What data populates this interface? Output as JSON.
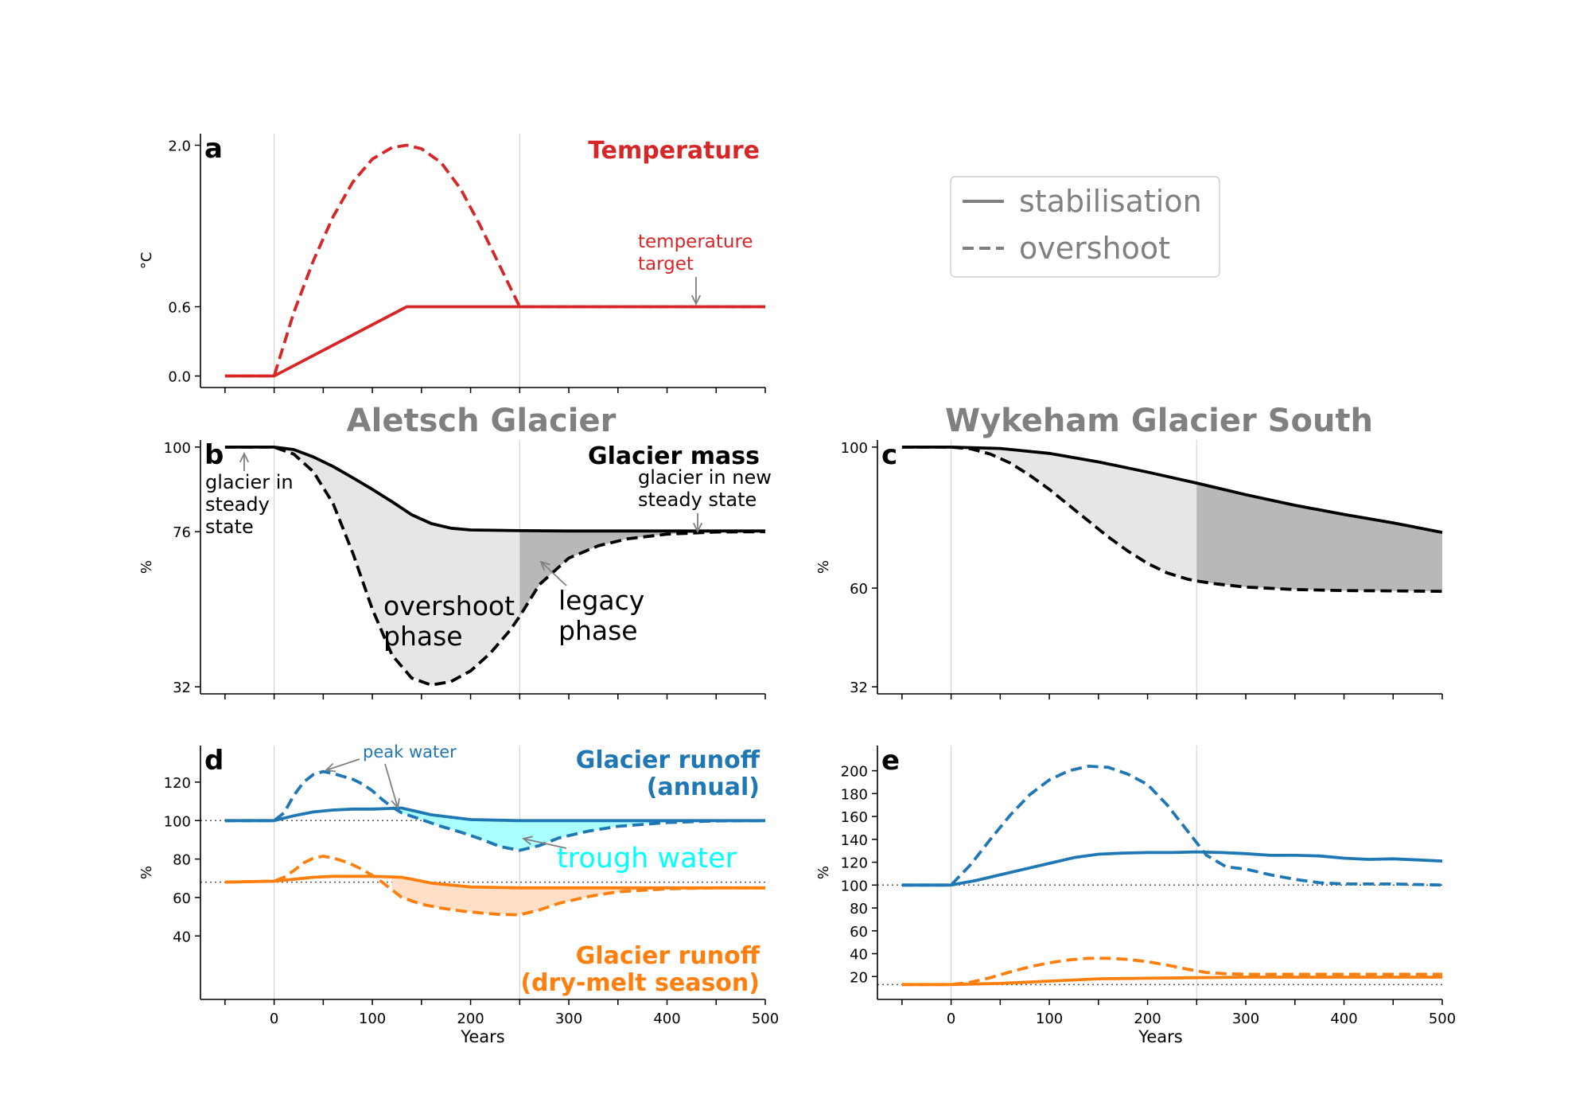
{
  "colors": {
    "red": "#d62728",
    "blue": "#1f77b4",
    "orange": "#ff7f0e",
    "cyan": "#00ffff",
    "grey": "#808080",
    "black": "#000000",
    "fill_light": "#e6e6e6",
    "fill_dark": "#b8b8b8",
    "fill_cyan": "#aaffff",
    "fill_orange": "#ffdfc6"
  },
  "figure": {
    "xlabel": "Years",
    "x_ticks": [
      0,
      100,
      200,
      300,
      400,
      500
    ],
    "xlim": [
      -75,
      500
    ],
    "legend": {
      "placement": "top-right",
      "entries": [
        {
          "label": "stabilisation",
          "style": "solid"
        },
        {
          "label": "overshoot",
          "style": "dashed"
        }
      ]
    },
    "column_titles": [
      "Aletsch Glacier",
      "Wykeham Glacier South"
    ]
  },
  "chart_data": [
    {
      "panel": "a",
      "type": "line",
      "title": "Temperature",
      "ylabel": "°C",
      "ylim": [
        -0.1,
        2.1
      ],
      "y_ticks": [
        0.0,
        0.6,
        2.0
      ],
      "y_tick_labels": [
        "0.0",
        "0.6",
        "2.0"
      ],
      "vlines": [
        0,
        250
      ],
      "annotations": [
        {
          "text": "temperature\ntarget"
        }
      ],
      "series": [
        {
          "style": "solid",
          "color": "red",
          "x": [
            -50,
            0,
            135,
            500
          ],
          "y": [
            0,
            0,
            0.6,
            0.6
          ]
        },
        {
          "style": "dashed",
          "color": "red",
          "x": [
            -50,
            0,
            20,
            40,
            60,
            80,
            100,
            120,
            135,
            150,
            170,
            190,
            210,
            230,
            250,
            500
          ],
          "y": [
            0,
            0,
            0.55,
            1.0,
            1.38,
            1.68,
            1.88,
            1.98,
            2.0,
            1.97,
            1.85,
            1.62,
            1.3,
            0.95,
            0.6,
            0.6
          ]
        }
      ]
    },
    {
      "panel": "b",
      "type": "line",
      "title": "Glacier mass",
      "ylabel": "%",
      "ylim": [
        30,
        102
      ],
      "y_ticks": [
        100,
        76,
        32
      ],
      "y_tick_labels": [
        "100",
        "76",
        "32"
      ],
      "vlines": [
        0,
        250
      ],
      "annotations": [
        {
          "text": "glacier in\nsteady\nstate"
        },
        {
          "text": "glacier in new\nsteady state"
        },
        {
          "text": "overshoot\nphase"
        },
        {
          "text": "legacy\nphase"
        }
      ],
      "series": [
        {
          "style": "solid",
          "color": "black",
          "x": [
            -50,
            0,
            20,
            40,
            60,
            80,
            100,
            120,
            140,
            160,
            180,
            200,
            250,
            300,
            500
          ],
          "y": [
            100,
            100,
            99.3,
            97.2,
            94.5,
            91.3,
            88.0,
            84.5,
            80.8,
            78.3,
            77.0,
            76.5,
            76.3,
            76.2,
            76.2
          ]
        },
        {
          "style": "dashed",
          "color": "black",
          "x": [
            -50,
            0,
            20,
            40,
            60,
            80,
            100,
            120,
            140,
            160,
            180,
            200,
            220,
            240,
            250,
            270,
            300,
            330,
            360,
            400,
            450,
            500
          ],
          "y": [
            100,
            100,
            98.0,
            93.0,
            84.0,
            70.0,
            54.0,
            41.0,
            34.5,
            32.5,
            33.5,
            36.5,
            41.5,
            48.0,
            52.0,
            61.0,
            68.5,
            72.0,
            74.0,
            75.3,
            75.9,
            76.0
          ]
        }
      ],
      "shading": [
        {
          "phase": "overshoot",
          "x_range": [
            0,
            250
          ],
          "fill": "fill_light"
        },
        {
          "phase": "legacy",
          "x_range": [
            250,
            500
          ],
          "fill": "fill_dark"
        }
      ]
    },
    {
      "panel": "c",
      "type": "line",
      "title": "",
      "ylabel": "%",
      "ylim": [
        30,
        102
      ],
      "y_ticks": [
        100,
        60,
        32
      ],
      "y_tick_labels": [
        "100",
        "60",
        "32"
      ],
      "vlines": [
        0,
        250
      ],
      "series": [
        {
          "style": "solid",
          "color": "black",
          "x": [
            -50,
            0,
            50,
            100,
            150,
            200,
            250,
            300,
            350,
            400,
            450,
            500
          ],
          "y": [
            100,
            100,
            99.6,
            98.2,
            95.8,
            92.9,
            89.8,
            86.5,
            83.5,
            80.9,
            78.5,
            75.8
          ]
        },
        {
          "style": "dashed",
          "color": "black",
          "x": [
            -50,
            0,
            20,
            40,
            60,
            80,
            100,
            120,
            140,
            160,
            180,
            200,
            220,
            240,
            250,
            270,
            300,
            350,
            400,
            450,
            500
          ],
          "y": [
            100,
            100,
            99.5,
            98.0,
            95.5,
            92.0,
            88.0,
            83.5,
            79.0,
            74.5,
            70.5,
            67.0,
            64.3,
            62.6,
            62.0,
            61.2,
            60.3,
            59.6,
            59.3,
            59.2,
            59.1
          ]
        }
      ],
      "shading": [
        {
          "phase": "overshoot",
          "x_range": [
            0,
            250
          ],
          "fill": "fill_light"
        },
        {
          "phase": "legacy",
          "x_range": [
            250,
            500
          ],
          "fill": "fill_dark"
        }
      ]
    },
    {
      "panel": "d",
      "type": "line",
      "title": "Glacier runoff\n(annual)",
      "title2": "Glacier runoff\n(dry-melt season)",
      "ylabel": "%",
      "ylim": [
        7,
        139
      ],
      "y_ticks": [
        40,
        60,
        80,
        100,
        120
      ],
      "y_tick_labels": [
        "40",
        "60",
        "80",
        "100",
        "120"
      ],
      "vlines": [
        0,
        250
      ],
      "hlines": [
        100,
        68
      ],
      "annotations": [
        {
          "text": "peak water"
        },
        {
          "text": "trough water"
        }
      ],
      "series": [
        {
          "name": "annual",
          "style": "solid",
          "color": "blue",
          "x": [
            -50,
            0,
            20,
            40,
            60,
            80,
            100,
            130,
            160,
            200,
            250,
            300,
            400,
            500
          ],
          "y": [
            100,
            100,
            102.5,
            104.5,
            105.5,
            106,
            106,
            106.5,
            103,
            100.5,
            100,
            100,
            100,
            100
          ]
        },
        {
          "name": "annual",
          "style": "dashed",
          "color": "blue",
          "x": [
            -50,
            0,
            10,
            20,
            30,
            40,
            50,
            60,
            70,
            80,
            90,
            100,
            110,
            120,
            130,
            150,
            170,
            190,
            210,
            230,
            250,
            270,
            290,
            320,
            350,
            400,
            450,
            500
          ],
          "y": [
            100,
            100,
            104,
            113,
            120,
            124,
            125.5,
            124.5,
            123,
            121.5,
            119,
            115.5,
            111,
            107,
            104,
            100.5,
            97,
            94,
            90.5,
            86.5,
            84.5,
            87,
            91,
            94.5,
            97,
            99,
            99.8,
            100
          ]
        },
        {
          "name": "dry-melt season",
          "style": "solid",
          "color": "orange",
          "x": [
            -50,
            0,
            20,
            40,
            60,
            80,
            100,
            130,
            160,
            200,
            250,
            300,
            400,
            500
          ],
          "y": [
            68,
            68.5,
            69.5,
            70.5,
            71,
            71,
            71,
            70.5,
            67.5,
            65.5,
            65,
            65,
            65,
            65
          ]
        },
        {
          "name": "dry-melt season",
          "style": "dashed",
          "color": "orange",
          "x": [
            -50,
            0,
            10,
            20,
            30,
            40,
            50,
            60,
            70,
            80,
            90,
            100,
            110,
            120,
            130,
            150,
            170,
            190,
            210,
            230,
            250,
            270,
            290,
            320,
            350,
            400,
            450,
            500
          ],
          "y": [
            68,
            68.5,
            70.5,
            74,
            78,
            80.5,
            81.5,
            80.5,
            79,
            77,
            74.5,
            71.5,
            68,
            64,
            60,
            56.5,
            54.5,
            53,
            52,
            51.2,
            51,
            53.5,
            57,
            60.5,
            63,
            64.5,
            65,
            65
          ]
        }
      ],
      "shading": [
        {
          "series": "annual",
          "x_range": [
            130,
            500
          ],
          "fill": "fill_cyan"
        },
        {
          "series": "dry-melt season",
          "x_range": [
            120,
            500
          ],
          "fill": "fill_orange"
        }
      ]
    },
    {
      "panel": "e",
      "type": "line",
      "title": "",
      "ylabel": "%",
      "ylim": [
        0,
        222
      ],
      "y_ticks": [
        20,
        40,
        60,
        80,
        100,
        120,
        140,
        160,
        180,
        200
      ],
      "y_tick_labels": [
        "20",
        "40",
        "60",
        "80",
        "100",
        "120",
        "140",
        "160",
        "180",
        "200"
      ],
      "vlines": [
        0,
        250
      ],
      "hlines": [
        100,
        13
      ],
      "series": [
        {
          "name": "annual",
          "style": "solid",
          "color": "blue",
          "x": [
            -50,
            0,
            25,
            50,
            75,
            100,
            125,
            150,
            175,
            200,
            225,
            250,
            275,
            300,
            325,
            350,
            375,
            400,
            425,
            450,
            475,
            500
          ],
          "y": [
            100,
            100,
            104,
            109,
            114,
            119,
            124,
            127,
            128,
            128.5,
            128.5,
            129,
            128.5,
            127.5,
            126,
            126,
            125.5,
            123.5,
            122.5,
            123,
            122,
            121
          ]
        },
        {
          "name": "annual",
          "style": "dashed",
          "color": "blue",
          "x": [
            -50,
            0,
            20,
            40,
            60,
            80,
            100,
            120,
            140,
            160,
            180,
            200,
            220,
            240,
            260,
            280,
            300,
            325,
            350,
            375,
            400,
            450,
            500
          ],
          "y": [
            100,
            100,
            118,
            140,
            161,
            179,
            192,
            200,
            204,
            203,
            197,
            188,
            170,
            148,
            126,
            116,
            114,
            109,
            105,
            102,
            101,
            101,
            100
          ]
        },
        {
          "name": "dry-melt season",
          "style": "solid",
          "color": "orange",
          "x": [
            -50,
            0,
            50,
            100,
            150,
            200,
            250,
            300,
            400,
            500
          ],
          "y": [
            13,
            13,
            14,
            16,
            18,
            18.5,
            19,
            19.5,
            19.5,
            19.5
          ]
        },
        {
          "name": "dry-melt season",
          "style": "dashed",
          "color": "orange",
          "x": [
            -50,
            0,
            20,
            40,
            60,
            80,
            100,
            120,
            140,
            160,
            180,
            200,
            220,
            240,
            260,
            280,
            300,
            350,
            400,
            450,
            500
          ],
          "y": [
            13,
            13,
            15,
            19,
            24,
            28.5,
            32,
            34.5,
            36,
            36,
            35,
            33,
            30,
            26.5,
            23.5,
            22.5,
            22,
            22,
            22,
            22,
            22
          ]
        }
      ]
    }
  ]
}
